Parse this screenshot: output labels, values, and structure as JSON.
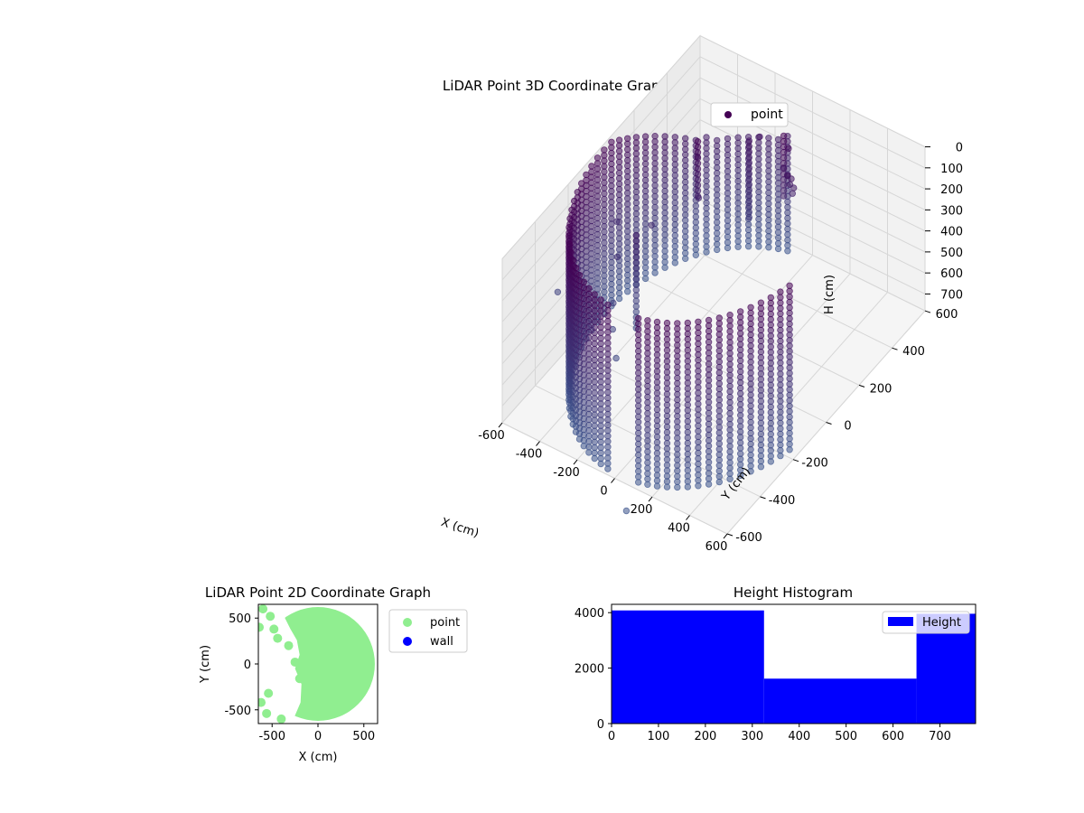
{
  "chart_data": [
    {
      "type": "scatter3d",
      "title": "LiDAR Point 3D Coordinate Graph",
      "xlabel": "X (cm)",
      "ylabel": "Y (cm)",
      "zlabel": "H (cm)",
      "xlim": [
        -600,
        600
      ],
      "ylim": [
        -600,
        600
      ],
      "zlim": [
        0,
        780
      ],
      "zaxis_inverted": true,
      "xticks": [
        "-600",
        "-400",
        "-200",
        "0",
        "200",
        "400",
        "600"
      ],
      "yticks": [
        "-600",
        "-400",
        "-200",
        "0",
        "200",
        "400",
        "600"
      ],
      "zticks": [
        "0",
        "100",
        "200",
        "300",
        "400",
        "500",
        "600",
        "700"
      ],
      "grid": true,
      "legend": {
        "position": "top-right",
        "entries": [
          "point"
        ]
      },
      "colormap": "viridis (dark purple near top, slate blue near bottom)",
      "series": [
        {
          "name": "point",
          "color": "#440154",
          "shape": "cylindrical wall",
          "wall_radius": 580,
          "wall_angle_start_deg": -80,
          "wall_angle_end_deg": 265,
          "h_max": 780,
          "extra_points": [
            [
              -350,
              300,
              200
            ],
            [
              -150,
              450,
              150
            ],
            [
              -50,
              480,
              280
            ],
            [
              30,
              420,
              100
            ],
            [
              60,
              380,
              180
            ],
            [
              -300,
              250,
              330
            ],
            [
              -420,
              100,
              380
            ],
            [
              -470,
              -50,
              420
            ],
            [
              -430,
              -120,
              560
            ],
            [
              -380,
              -180,
              610
            ],
            [
              -300,
              -250,
              650
            ],
            [
              150,
              -700,
              780
            ],
            [
              -700,
              -150,
              600
            ],
            [
              -560,
              50,
              380
            ]
          ]
        }
      ]
    },
    {
      "type": "scatter",
      "title": "LiDAR Point 2D Coordinate Graph",
      "xlabel": "X (cm)",
      "ylabel": "Y (cm)",
      "xlim": [
        -650,
        650
      ],
      "ylim": [
        -650,
        650
      ],
      "xticks": [
        -500,
        0,
        500
      ],
      "yticks": [
        -500,
        0,
        500
      ],
      "legend": {
        "position": "outside-right",
        "entries": [
          {
            "name": "point",
            "color": "#90ee90"
          },
          {
            "name": "wall",
            "color": "#0000ff"
          }
        ]
      },
      "fill_region": {
        "color": "#90ee90",
        "description": "disc of radius 620 minus an irregular empty area on the left",
        "disc_radius": 620
      },
      "scatter_points": [
        [
          -520,
          520
        ],
        [
          -480,
          380
        ],
        [
          -440,
          280
        ],
        [
          -320,
          200
        ],
        [
          -250,
          20
        ],
        [
          -200,
          -160
        ],
        [
          -540,
          -320
        ],
        [
          -620,
          -420
        ],
        [
          -560,
          -540
        ],
        [
          -400,
          -600
        ],
        [
          -600,
          600
        ],
        [
          -640,
          400
        ]
      ]
    },
    {
      "type": "histogram",
      "title": "Height Histogram",
      "xlim": [
        0,
        776
      ],
      "ylim": [
        0,
        4300
      ],
      "xticks": [
        0,
        100,
        200,
        300,
        400,
        500,
        600,
        700
      ],
      "yticks": [
        0,
        2000,
        4000
      ],
      "legend": {
        "position": "top-right",
        "entries": [
          "Height"
        ]
      },
      "series": [
        {
          "name": "Height",
          "color": "#0000ff",
          "bins": [
            {
              "x0": 0,
              "x1": 325,
              "count": 4080
            },
            {
              "x0": 325,
              "x1": 650,
              "count": 1620
            },
            {
              "x0": 650,
              "x1": 776,
              "count": 3960
            }
          ]
        }
      ]
    }
  ]
}
